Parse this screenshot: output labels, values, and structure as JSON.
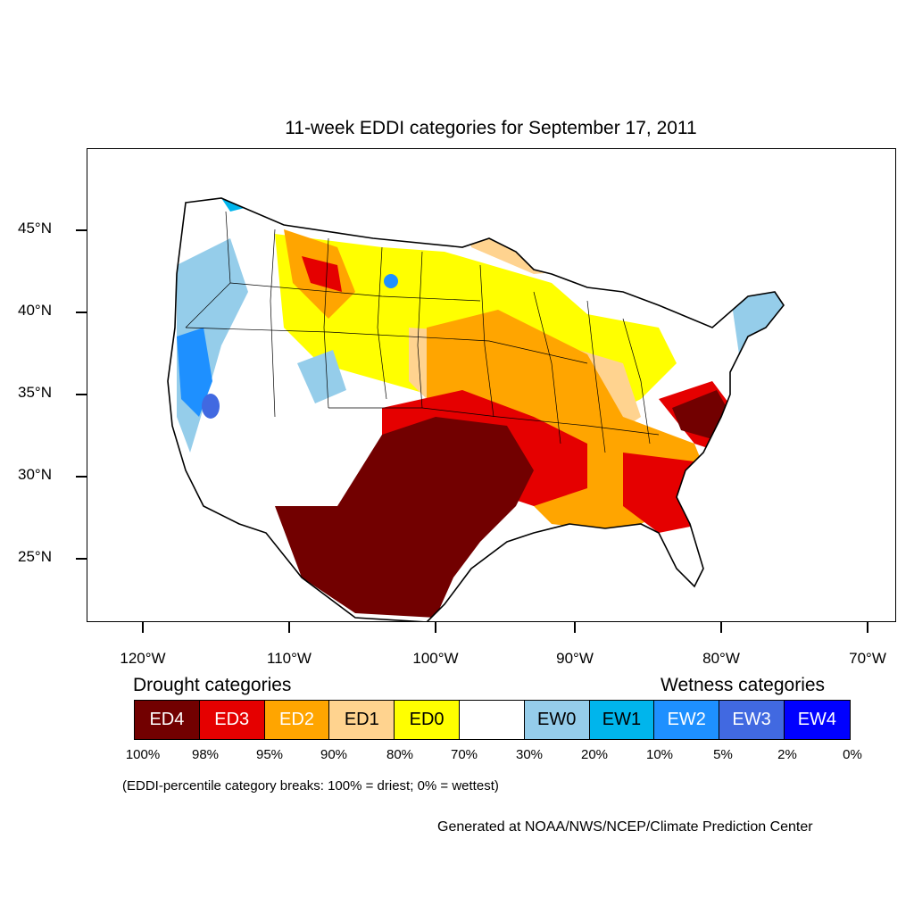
{
  "title": "11-week EDDI categories for September 17, 2011",
  "map": {
    "latitude_labels": [
      "45°N",
      "40°N",
      "35°N",
      "30°N",
      "25°N"
    ],
    "longitude_labels": [
      "120°W",
      "110°W",
      "100°W",
      "90°W",
      "80°W",
      "70°W"
    ],
    "colors": {
      "ED4": "#720000",
      "ED3": "#e50000",
      "ED2": "#ffa500",
      "ED1": "#ffd38f",
      "ED0": "#ffff00",
      "Normal": "#ffffff",
      "EW0": "#95cdea",
      "EW1": "#00b5ec",
      "EW2": "#1e90ff",
      "EW3": "#4169e1",
      "EW4": "#0000ff"
    }
  },
  "legend": {
    "drought_label": "Drought categories",
    "wetness_label": "Wetness categories",
    "categories": [
      {
        "label": "ED4",
        "color": "#720000",
        "text_color": "#ffffff"
      },
      {
        "label": "ED3",
        "color": "#e50000",
        "text_color": "#ffffff"
      },
      {
        "label": "ED2",
        "color": "#ffa500",
        "text_color": "#ffffff"
      },
      {
        "label": "ED1",
        "color": "#ffd38f",
        "text_color": "#000000"
      },
      {
        "label": "ED0",
        "color": "#ffff00",
        "text_color": "#000000"
      },
      {
        "label": "",
        "color": "#ffffff",
        "text_color": "#000000"
      },
      {
        "label": "EW0",
        "color": "#95cdea",
        "text_color": "#000000"
      },
      {
        "label": "EW1",
        "color": "#00b5ec",
        "text_color": "#000000"
      },
      {
        "label": "EW2",
        "color": "#1e90ff",
        "text_color": "#ffffff"
      },
      {
        "label": "EW3",
        "color": "#4169e1",
        "text_color": "#ffffff"
      },
      {
        "label": "EW4",
        "color": "#0000ff",
        "text_color": "#ffffff"
      }
    ],
    "breaks": [
      "100%",
      "98%",
      "95%",
      "90%",
      "80%",
      "70%",
      "30%",
      "20%",
      "10%",
      "5%",
      "2%",
      "0%"
    ]
  },
  "note": "(EDDI-percentile category breaks: 100% = driest; 0% = wettest)",
  "credit": "Generated at NOAA/NWS/NCEP/Climate Prediction Center"
}
